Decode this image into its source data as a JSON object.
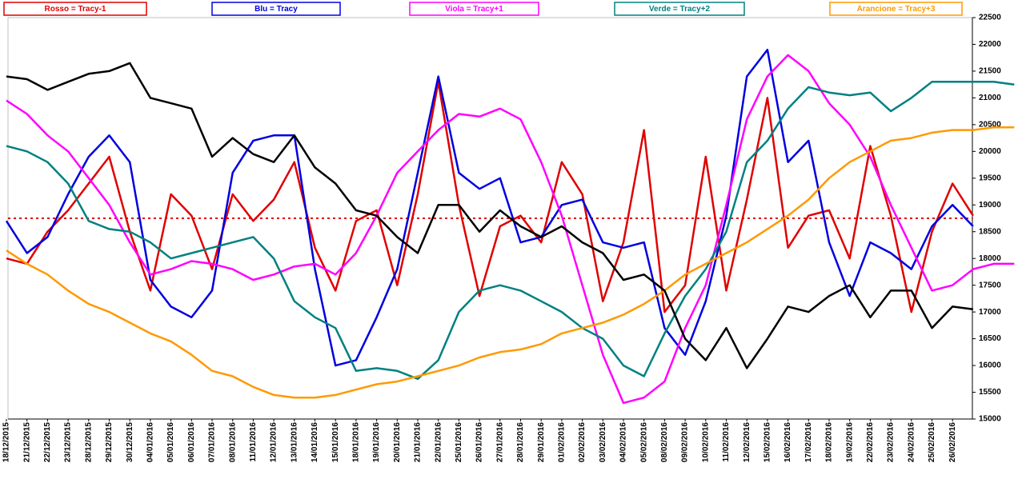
{
  "chart_data": {
    "type": "line",
    "categories": [
      "18/12/2015",
      "21/12/2015",
      "22/12/2015",
      "23/12/2015",
      "28/12/2015",
      "29/12/2015",
      "30/12/2015",
      "04/01/2016",
      "05/01/2016",
      "06/01/2016",
      "07/01/2016",
      "08/01/2016",
      "11/01/2016",
      "12/01/2016",
      "13/01/2016",
      "14/01/2016",
      "15/01/2016",
      "18/01/2016",
      "19/01/2016",
      "20/01/2016",
      "21/01/2016",
      "22/01/2016",
      "25/01/2016",
      "26/01/2016",
      "27/01/2016",
      "28/01/2016",
      "29/01/2016",
      "01/02/2016",
      "02/02/2016",
      "03/02/2016",
      "04/02/2016",
      "05/02/2016",
      "08/02/2016",
      "09/02/2016",
      "10/02/2016",
      "11/02/2016",
      "12/02/2016",
      "15/02/2016",
      "16/02/2016",
      "17/02/2016",
      "18/02/2016",
      "19/02/2016",
      "22/02/2016",
      "23/02/2016",
      "24/02/2016",
      "25/02/2016",
      "26/02/2016",
      null,
      null,
      null
    ],
    "series": [
      {
        "color": "#000000",
        "values": [
          21400,
          21350,
          21150,
          21300,
          21450,
          21500,
          21650,
          21000,
          20900,
          20800,
          19900,
          20250,
          19950,
          19800,
          20300,
          19700,
          19400,
          18900,
          18800,
          18400,
          18100,
          19000,
          19000,
          18500,
          18900,
          18600,
          18400,
          18600,
          18300,
          18100,
          17600,
          17700,
          17400,
          16500,
          16100,
          16700,
          15950,
          16500,
          17100,
          17000,
          17300,
          17500,
          16900,
          17400,
          17400,
          16700,
          17100,
          17050,
          null,
          null
        ]
      },
      {
        "name": "Rosso = Tracy-1",
        "color": "#e00000",
        "values": [
          18000,
          17900,
          18500,
          18900,
          19400,
          19900,
          18500,
          17400,
          19200,
          18800,
          17800,
          19200,
          18700,
          19100,
          19800,
          18200,
          17400,
          18700,
          18900,
          17500,
          19200,
          21300,
          19000,
          17300,
          18600,
          18800,
          18300,
          19800,
          19200,
          17200,
          18300,
          20400,
          17000,
          17500,
          19900,
          17400,
          19100,
          21000,
          18200,
          18800,
          18900,
          18000,
          20100,
          18800,
          17000,
          18500,
          19400,
          18800,
          null,
          null
        ]
      },
      {
        "name": "Blu = Tracy",
        "color": "#0000e0",
        "values": [
          18700,
          18100,
          18400,
          19200,
          19900,
          20300,
          19800,
          17600,
          17100,
          16900,
          17400,
          19600,
          20200,
          20300,
          20300,
          17800,
          16000,
          16100,
          16900,
          17800,
          19600,
          21400,
          19600,
          19300,
          19500,
          18300,
          18400,
          19000,
          19100,
          18300,
          18200,
          18300,
          16700,
          16200,
          17200,
          18800,
          21400,
          21900,
          19800,
          20200,
          18300,
          17300,
          18300,
          18100,
          17800,
          18600,
          19000,
          18600,
          null,
          null
        ]
      },
      {
        "name": "Viola = Tracy+1",
        "color": "#ff00ff",
        "values": [
          20950,
          20700,
          20300,
          20000,
          19500,
          19000,
          18300,
          17700,
          17800,
          17950,
          17900,
          17800,
          17600,
          17700,
          17850,
          17900,
          17700,
          18100,
          18800,
          19600,
          20000,
          20400,
          20700,
          20650,
          20800,
          20600,
          19800,
          18800,
          17500,
          16200,
          15300,
          15400,
          15700,
          16700,
          17500,
          19000,
          20600,
          21400,
          21800,
          21500,
          20900,
          20500,
          19900,
          19000,
          18200,
          17400,
          17500,
          17800,
          17900,
          17900
        ]
      },
      {
        "name": "Verde = Tracy+2",
        "color": "#008080",
        "values": [
          20100,
          20000,
          19800,
          19400,
          18700,
          18550,
          18500,
          18300,
          18000,
          18100,
          18200,
          18300,
          18400,
          18000,
          17200,
          16900,
          16700,
          15900,
          15950,
          15900,
          15750,
          16100,
          17000,
          17400,
          17500,
          17400,
          17200,
          17000,
          16700,
          16500,
          16000,
          15800,
          16600,
          17300,
          17800,
          18500,
          19800,
          20200,
          20800,
          21200,
          21100,
          21050,
          21100,
          20750,
          21000,
          21300,
          21300,
          21300,
          21300,
          21250
        ]
      },
      {
        "name": "Arancione = Tracy+3",
        "color": "#ff9900",
        "values": [
          18150,
          17900,
          17700,
          17400,
          17150,
          17000,
          16800,
          16600,
          16450,
          16200,
          15900,
          15800,
          15600,
          15450,
          15400,
          15400,
          15450,
          15550,
          15650,
          15700,
          15800,
          15900,
          16000,
          16150,
          16250,
          16300,
          16400,
          16600,
          16700,
          16800,
          16950,
          17150,
          17400,
          17700,
          17900,
          18100,
          18300,
          18550,
          18800,
          19100,
          19500,
          19800,
          20000,
          20200,
          20250,
          20350,
          20400,
          20400,
          20450,
          20450
        ]
      }
    ],
    "reference_line": {
      "value": 18750,
      "color": "#e00000"
    },
    "ylim": [
      15000,
      22500
    ],
    "yticks": [
      15000,
      15500,
      16000,
      16500,
      17000,
      17500,
      18000,
      18500,
      19000,
      19500,
      20000,
      20500,
      21000,
      21500,
      22000,
      22500
    ]
  }
}
